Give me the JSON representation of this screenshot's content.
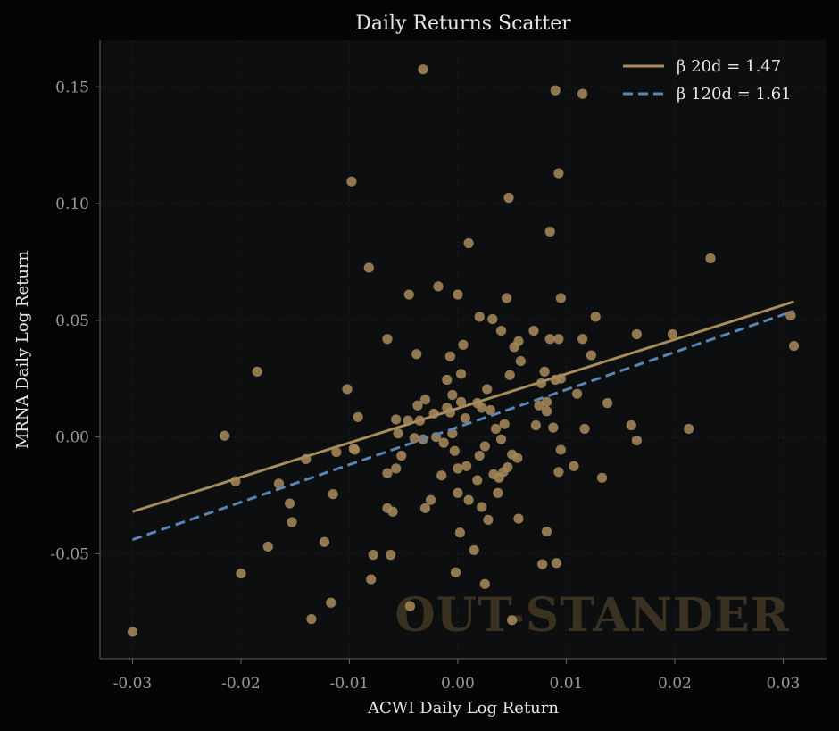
{
  "chart_data": {
    "type": "scatter",
    "title": "Daily Returns Scatter",
    "xlabel": "ACWI Daily Log Return",
    "ylabel": "MRNA Daily Log Return",
    "xlim": [
      -0.033,
      0.034
    ],
    "ylim": [
      -0.095,
      0.17
    ],
    "xticks": [
      -0.03,
      -0.02,
      -0.01,
      0.0,
      0.01,
      0.02,
      0.03
    ],
    "xtick_labels": [
      "-0.03",
      "-0.02",
      "-0.01",
      "0.00",
      "0.01",
      "0.02",
      "0.03"
    ],
    "yticks": [
      -0.05,
      0.0,
      0.05,
      0.1,
      0.15
    ],
    "ytick_labels": [
      "-0.05",
      "0.00",
      "0.05",
      "0.10",
      "0.15"
    ],
    "grid": true,
    "legend_position": "top-right",
    "watermark": "OUT-STANDER",
    "colors": {
      "background": "#050505",
      "plot_background": "#0d0e10",
      "points": "#a4875a",
      "beta20": "#a68b5b",
      "beta120": "#5b86b3",
      "grid": "#1c1e22",
      "spine": "#444444"
    },
    "points": [
      [
        -0.03,
        -0.0835
      ],
      [
        -0.0215,
        0.0005
      ],
      [
        -0.0205,
        -0.019
      ],
      [
        -0.02,
        -0.0585
      ],
      [
        -0.0185,
        0.028
      ],
      [
        -0.0175,
        -0.047
      ],
      [
        -0.0165,
        -0.02
      ],
      [
        -0.0155,
        -0.0285
      ],
      [
        -0.0153,
        -0.0365
      ],
      [
        -0.014,
        -0.0095
      ],
      [
        -0.0135,
        -0.078
      ],
      [
        -0.0123,
        -0.045
      ],
      [
        -0.0117,
        -0.071
      ],
      [
        -0.0115,
        -0.0245
      ],
      [
        -0.0112,
        -0.0065
      ],
      [
        -0.0102,
        0.0205
      ],
      [
        -0.0098,
        0.1095
      ],
      [
        -0.0096,
        -0.005
      ],
      [
        -0.0095,
        -0.0055
      ],
      [
        -0.0092,
        0.0085
      ],
      [
        -0.0082,
        0.0725
      ],
      [
        -0.008,
        -0.061
      ],
      [
        -0.0078,
        -0.0505
      ],
      [
        -0.0065,
        0.042
      ],
      [
        -0.0065,
        -0.0155
      ],
      [
        -0.0065,
        -0.0305
      ],
      [
        -0.0062,
        -0.0505
      ],
      [
        -0.006,
        -0.032
      ],
      [
        -0.0057,
        -0.0135
      ],
      [
        -0.0057,
        0.0075
      ],
      [
        -0.0055,
        0.0015
      ],
      [
        -0.0052,
        -0.008
      ],
      [
        -0.0046,
        0.007
      ],
      [
        -0.0045,
        0.061
      ],
      [
        -0.0044,
        -0.0725
      ],
      [
        -0.004,
        -0.0005
      ],
      [
        -0.0038,
        0.0355
      ],
      [
        -0.0037,
        0.0135
      ],
      [
        -0.0035,
        0.007
      ],
      [
        -0.0032,
        0.1575
      ],
      [
        -0.0032,
        -0.001
      ],
      [
        -0.003,
        0.016
      ],
      [
        -0.003,
        -0.0305
      ],
      [
        -0.0025,
        -0.027
      ],
      [
        -0.0022,
        0.01
      ],
      [
        -0.002,
        0.0
      ],
      [
        -0.0018,
        0.0645
      ],
      [
        -0.0015,
        -0.0165
      ],
      [
        -0.0013,
        -0.0025
      ],
      [
        -0.001,
        0.0125
      ],
      [
        -0.001,
        0.0245
      ],
      [
        -0.0007,
        0.0105
      ],
      [
        -0.0007,
        0.0345
      ],
      [
        -0.0005,
        0.018
      ],
      [
        -0.0005,
        0.0015
      ],
      [
        -0.0003,
        -0.006
      ],
      [
        -0.0002,
        -0.058
      ],
      [
        0.0,
        0.061
      ],
      [
        0.0,
        -0.024
      ],
      [
        0.0,
        -0.0135
      ],
      [
        0.0002,
        -0.041
      ],
      [
        0.0003,
        0.015
      ],
      [
        0.0003,
        0.027
      ],
      [
        0.0005,
        0.0395
      ],
      [
        0.0007,
        0.008
      ],
      [
        0.0008,
        -0.0125
      ],
      [
        0.001,
        0.083
      ],
      [
        0.001,
        -0.027
      ],
      [
        0.0015,
        -0.0485
      ],
      [
        0.0018,
        0.0145
      ],
      [
        0.0018,
        -0.0185
      ],
      [
        0.002,
        0.0515
      ],
      [
        0.002,
        -0.008
      ],
      [
        0.0022,
        0.0125
      ],
      [
        0.0022,
        -0.03
      ],
      [
        0.0025,
        -0.063
      ],
      [
        0.0025,
        -0.004
      ],
      [
        0.0027,
        0.0205
      ],
      [
        0.0028,
        -0.0355
      ],
      [
        0.003,
        0.0115
      ],
      [
        0.0032,
        0.0505
      ],
      [
        0.0033,
        -0.016
      ],
      [
        0.0035,
        0.0035
      ],
      [
        0.0037,
        -0.024
      ],
      [
        0.0038,
        -0.0175
      ],
      [
        0.004,
        0.0455
      ],
      [
        0.004,
        -0.001
      ],
      [
        0.0042,
        -0.015
      ],
      [
        0.0043,
        0.0055
      ],
      [
        0.0045,
        0.0595
      ],
      [
        0.0046,
        -0.013
      ],
      [
        0.0047,
        0.1025
      ],
      [
        0.0048,
        0.0265
      ],
      [
        0.005,
        -0.0785
      ],
      [
        0.005,
        -0.0075
      ],
      [
        0.0052,
        0.0385
      ],
      [
        0.0055,
        -0.009
      ],
      [
        0.0056,
        0.041
      ],
      [
        0.0056,
        -0.035
      ],
      [
        0.0058,
        0.0325
      ],
      [
        0.007,
        0.0455
      ],
      [
        0.0072,
        0.005
      ],
      [
        0.0075,
        0.0135
      ],
      [
        0.0077,
        0.023
      ],
      [
        0.0078,
        -0.0545
      ],
      [
        0.008,
        0.028
      ],
      [
        0.0082,
        0.011
      ],
      [
        0.0082,
        0.015
      ],
      [
        0.0082,
        -0.0405
      ],
      [
        0.0085,
        0.088
      ],
      [
        0.0085,
        0.042
      ],
      [
        0.0088,
        0.004
      ],
      [
        0.009,
        0.0245
      ],
      [
        0.009,
        0.1485
      ],
      [
        0.0091,
        -0.054
      ],
      [
        0.0093,
        0.113
      ],
      [
        0.0093,
        -0.015
      ],
      [
        0.0093,
        0.042
      ],
      [
        0.0095,
        -0.0055
      ],
      [
        0.0095,
        0.025
      ],
      [
        0.0095,
        0.0595
      ],
      [
        0.0107,
        -0.0125
      ],
      [
        0.011,
        0.0185
      ],
      [
        0.0115,
        0.147
      ],
      [
        0.0115,
        0.042
      ],
      [
        0.0117,
        0.0035
      ],
      [
        0.0123,
        0.035
      ],
      [
        0.0127,
        0.0515
      ],
      [
        0.0133,
        -0.0175
      ],
      [
        0.0138,
        0.0145
      ],
      [
        0.016,
        0.005
      ],
      [
        0.0165,
        0.044
      ],
      [
        0.0165,
        -0.0015
      ],
      [
        0.0198,
        0.044
      ],
      [
        0.0213,
        0.0035
      ],
      [
        0.0233,
        0.0765
      ],
      [
        0.0307,
        0.052
      ],
      [
        0.031,
        0.039
      ]
    ],
    "series": [
      {
        "name": "β 20d = 1.47",
        "style": "solid",
        "x": [
          -0.03,
          0.031
        ],
        "y": [
          -0.032,
          0.058
        ]
      },
      {
        "name": "β 120d = 1.61",
        "style": "dashed",
        "x": [
          -0.03,
          0.031
        ],
        "y": [
          -0.044,
          0.054
        ]
      }
    ]
  }
}
